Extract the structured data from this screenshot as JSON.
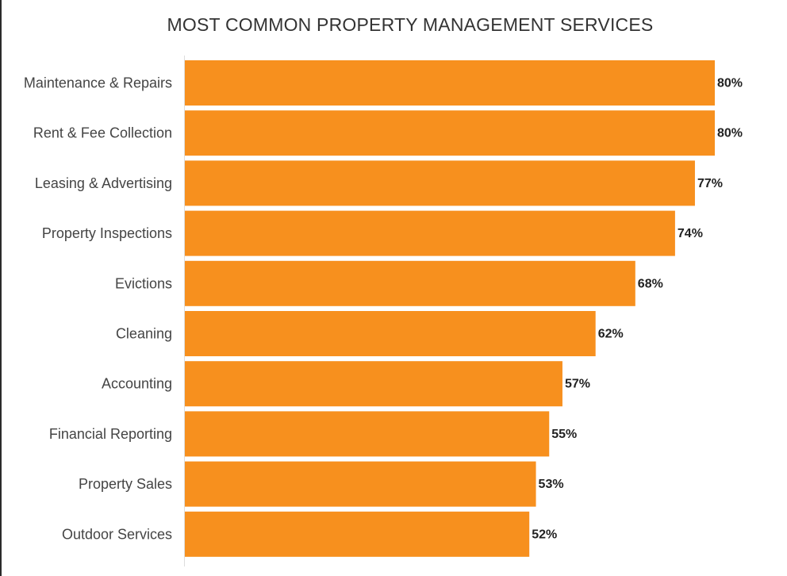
{
  "chart_data": {
    "type": "bar",
    "orientation": "horizontal",
    "title": "MOST COMMON PROPERTY MANAGEMENT SERVICES",
    "categories": [
      "Maintenance & Repairs",
      "Rent & Fee Collection",
      "Leasing & Advertising",
      "Property Inspections",
      "Evictions",
      "Cleaning",
      "Accounting",
      "Financial Reporting",
      "Property Sales",
      "Outdoor Services"
    ],
    "values": [
      80,
      80,
      77,
      74,
      68,
      62,
      57,
      55,
      53,
      52
    ],
    "data_labels": [
      "80%",
      "80%",
      "77%",
      "74%",
      "68%",
      "62%",
      "57%",
      "55%",
      "53%",
      "52%"
    ],
    "unit": "%",
    "xlim": [
      0,
      100
    ],
    "grid": false,
    "legend": "none",
    "colors": {
      "bar": "#f7901e",
      "axis": "#dddddd"
    }
  }
}
